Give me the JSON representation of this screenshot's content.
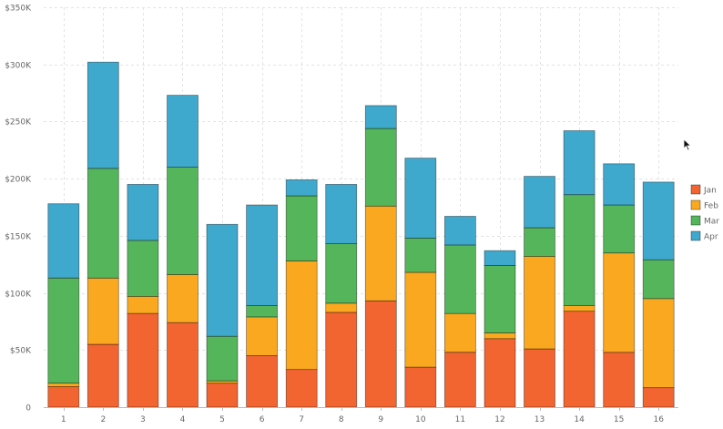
{
  "chart_data": {
    "type": "bar",
    "stacked": true,
    "title": "",
    "xlabel": "",
    "ylabel": "",
    "ylim": [
      0,
      350000
    ],
    "y_ticks": [
      0,
      50000,
      100000,
      150000,
      200000,
      250000,
      300000,
      350000
    ],
    "y_tick_labels": [
      "0",
      "$50K",
      "$100K",
      "$150K",
      "$200K",
      "$250K",
      "$300K",
      "$350K"
    ],
    "grid": true,
    "legend_position": "right",
    "categories": [
      "1",
      "2",
      "3",
      "4",
      "5",
      "6",
      "7",
      "8",
      "9",
      "10",
      "11",
      "12",
      "13",
      "14",
      "15",
      "16"
    ],
    "series": [
      {
        "name": "Jan",
        "color": "#f26430",
        "values": [
          18000,
          55000,
          82000,
          74000,
          21000,
          45000,
          33000,
          83000,
          93000,
          35000,
          48000,
          60000,
          51000,
          84000,
          48000,
          17000
        ]
      },
      {
        "name": "Feb",
        "color": "#f9a81f",
        "values": [
          3000,
          58000,
          15000,
          42000,
          2000,
          34000,
          95000,
          8000,
          83000,
          83000,
          34000,
          5000,
          81000,
          5000,
          87000,
          78000
        ]
      },
      {
        "name": "Mar",
        "color": "#54b55a",
        "values": [
          92000,
          96000,
          49000,
          94000,
          39000,
          10000,
          57000,
          52000,
          68000,
          30000,
          60000,
          59000,
          25000,
          97000,
          42000,
          34000
        ]
      },
      {
        "name": "Apr",
        "color": "#3fa8cd",
        "values": [
          65000,
          93000,
          49000,
          63000,
          98000,
          88000,
          14000,
          52000,
          20000,
          70000,
          25000,
          13000,
          45000,
          56000,
          36000,
          68000
        ]
      }
    ]
  }
}
